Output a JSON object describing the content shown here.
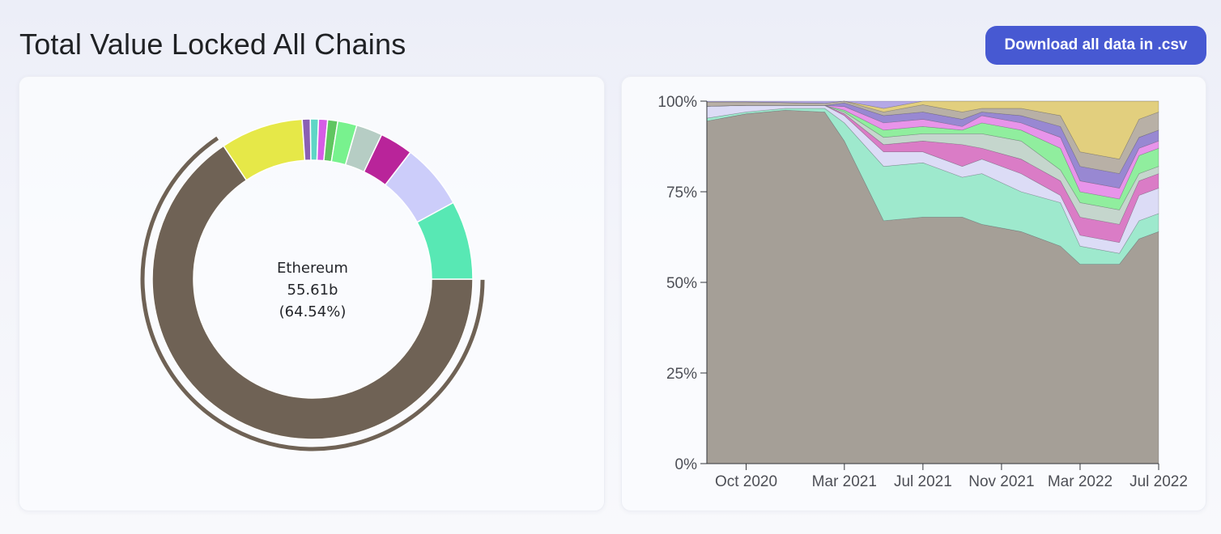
{
  "header": {
    "title": "Total Value Locked All Chains",
    "download_label": "Download all data in .csv"
  },
  "colors": {
    "accent": "#4759d2",
    "ethereum": "#6f6255"
  },
  "pie": {
    "center_name": "Ethereum",
    "center_value": "55.61b",
    "center_percent": "(64.54%)",
    "chart_data": {
      "type": "pie",
      "style": "donut",
      "highlighted": "Ethereum",
      "slices": [
        {
          "value": 64.54,
          "color": "#6f6255"
        },
        {
          "value": 8.2,
          "color": "#e6e848"
        },
        {
          "value": 0.8,
          "color": "#8a5fb4"
        },
        {
          "value": 0.8,
          "color": "#5ed6c6"
        },
        {
          "value": 0.9,
          "color": "#d65ce6"
        },
        {
          "value": 1.0,
          "color": "#60c660"
        },
        {
          "value": 1.9,
          "color": "#78f28e"
        },
        {
          "value": 2.6,
          "color": "#b6cdc4"
        },
        {
          "value": 3.3,
          "color": "#b9249a"
        },
        {
          "value": 6.5,
          "color": "#cccdfa"
        },
        {
          "value": 7.8,
          "color": "#58e8b4"
        }
      ]
    }
  },
  "chart_data": {
    "type": "area",
    "stacked": "percent",
    "x_ticks": [
      "Oct 2020",
      "Mar 2021",
      "Jul 2021",
      "Nov 2021",
      "Mar 2022",
      "Jul 2022"
    ],
    "y_ticks": [
      "0%",
      "25%",
      "50%",
      "75%",
      "100%"
    ],
    "ylim": [
      0,
      100
    ],
    "grid": false,
    "x": [
      "2020-08",
      "2020-10",
      "2020-12",
      "2021-02",
      "2021-03",
      "2021-05",
      "2021-07",
      "2021-09",
      "2021-10",
      "2021-12",
      "2022-02",
      "2022-03",
      "2022-05",
      "2022-06",
      "2022-07"
    ],
    "series": [
      {
        "color": "#a59f97",
        "values": [
          94.5,
          96.5,
          97.5,
          97,
          89,
          67,
          68,
          68,
          66,
          64,
          60,
          55,
          55,
          62,
          64
        ]
      },
      {
        "color": "#9ee9cd",
        "values": [
          0.8,
          0.5,
          0.5,
          1,
          5,
          15,
          15,
          11,
          14,
          11,
          12,
          5,
          3,
          5,
          5
        ]
      },
      {
        "color": "#dcdcf6",
        "values": [
          3.3,
          1.8,
          0.8,
          0.8,
          2,
          4,
          3,
          3,
          4,
          5,
          2,
          3,
          3,
          7,
          7
        ]
      },
      {
        "color": "#da7cc6",
        "values": [
          0,
          0,
          0,
          0,
          0.5,
          2,
          3,
          6,
          3,
          4,
          4,
          5,
          5,
          4,
          4
        ]
      },
      {
        "color": "#c5d6cd",
        "values": [
          0,
          0,
          0,
          0,
          0.5,
          2,
          2,
          3,
          4,
          5,
          3,
          4,
          4,
          2,
          2
        ]
      },
      {
        "color": "#90ee9e",
        "values": [
          0,
          0,
          0,
          0,
          0.5,
          2,
          2,
          1,
          3,
          3,
          6,
          3,
          3,
          5,
          5
        ]
      },
      {
        "color": "#e894ea",
        "values": [
          0,
          0,
          0,
          0,
          1,
          2,
          2,
          1,
          2,
          2,
          3,
          3,
          3,
          2,
          2
        ]
      },
      {
        "color": "#9888d2",
        "values": [
          0,
          0,
          0,
          0,
          1,
          2,
          2,
          2,
          1,
          2,
          3,
          4,
          4,
          3,
          3
        ]
      },
      {
        "color": "#b8b0a6",
        "values": [
          1.2,
          1,
          0.8,
          0.6,
          0.5,
          1,
          2,
          2,
          1,
          2,
          3,
          4,
          4,
          5,
          5
        ]
      },
      {
        "color": "#e2cf7e",
        "values": [
          0,
          0,
          0,
          0,
          0,
          1,
          1,
          3,
          2,
          2,
          4,
          14,
          16,
          5,
          3
        ]
      },
      {
        "color": "#b4a8e6",
        "values": [
          0.2,
          0.2,
          0.4,
          0.6,
          0,
          2,
          0,
          0,
          0,
          0,
          0,
          0,
          0,
          0,
          0
        ]
      }
    ]
  }
}
